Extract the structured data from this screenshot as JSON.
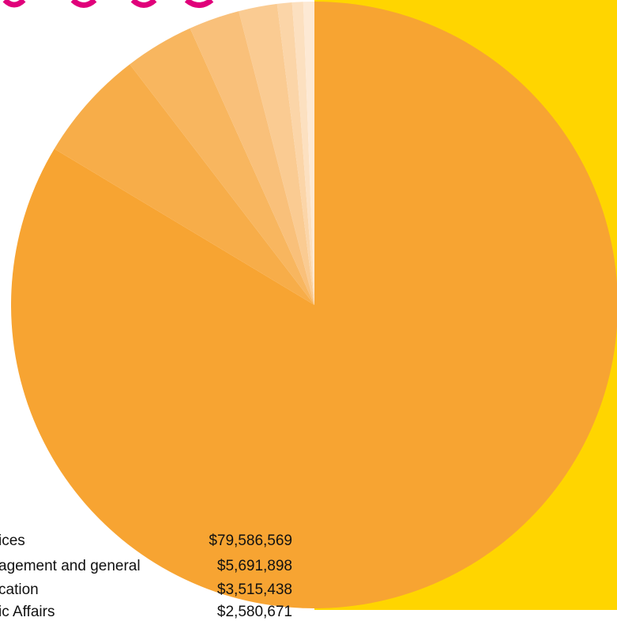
{
  "colors": {
    "background": "#ffffff",
    "panel": "#FFD500",
    "title": "#E0007A",
    "slices": [
      "#F7A432",
      "#F7AD49",
      "#F8B65F",
      "#F9C07A",
      "#FACB92",
      "#FBD5A8",
      "#FCE0C0",
      "#FDE9D4"
    ]
  },
  "chart_data": {
    "type": "pie",
    "title": "",
    "start_angle": "12 o'clock",
    "direction": "clockwise",
    "slices": [
      {
        "label": "ices",
        "value": 79586569,
        "display": "$79,586,569"
      },
      {
        "label": "agement and general",
        "value": 5691898,
        "display": "$5,691,898"
      },
      {
        "label": "cation",
        "value": 3515438,
        "display": "$3,515,438"
      },
      {
        "label": "ic Affairs",
        "value": 2580671,
        "display": "$2,580,671"
      },
      {
        "label": "",
        "value": 1950000,
        "display": ""
      },
      {
        "label": "",
        "value": 750000,
        "display": ""
      },
      {
        "label": "",
        "value": 560000,
        "display": ""
      },
      {
        "label": "",
        "value": 560000,
        "display": ""
      }
    ]
  },
  "legend": {
    "rows": [
      {
        "label": "ices",
        "value": "$79,586,569"
      },
      {
        "label": "agement and general",
        "value": "$5,691,898"
      },
      {
        "label": "cation",
        "value": "$3,515,438"
      },
      {
        "label": "ic Affairs",
        "value": "$2,580,671"
      }
    ]
  }
}
